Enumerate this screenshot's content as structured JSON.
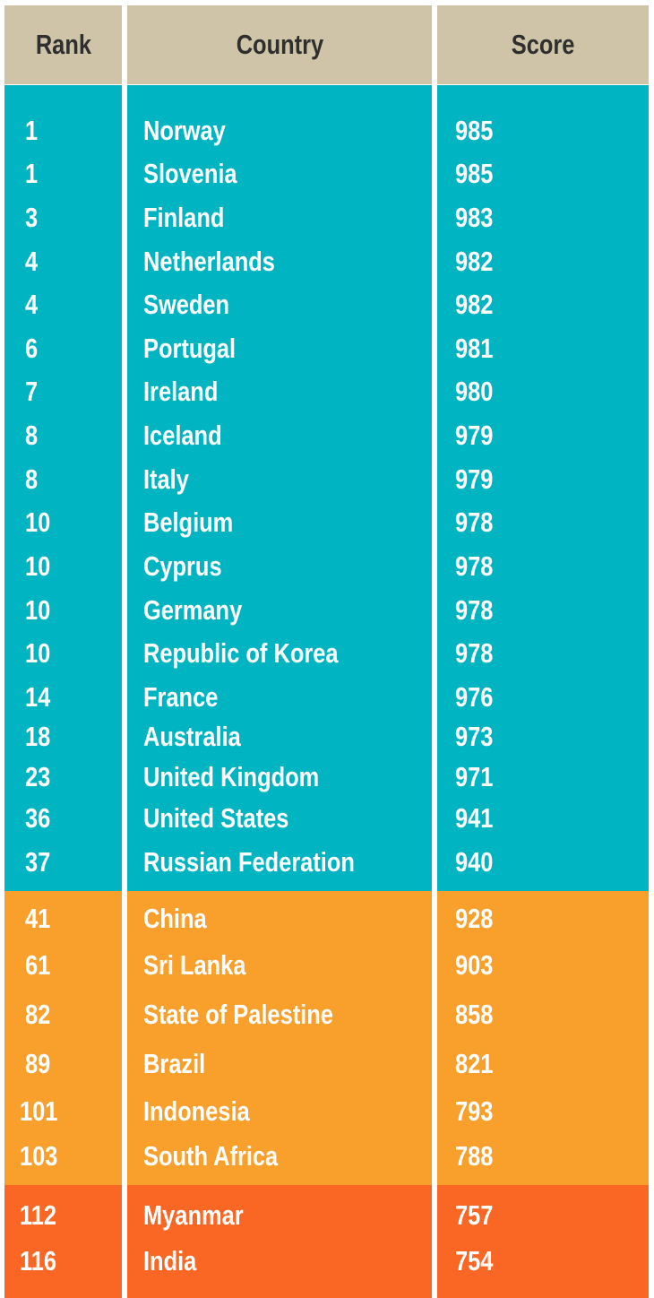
{
  "chart_data": {
    "type": "table",
    "columns": [
      "Rank",
      "Country",
      "Score"
    ],
    "colors": {
      "header": "#cfc4a8",
      "group_1": "#00b5c1",
      "group_2": "#f9a02c",
      "group_3": "#fa6623"
    },
    "rows": [
      {
        "rank": "1",
        "country": "Norway",
        "score": 985,
        "group": 1
      },
      {
        "rank": "1",
        "country": "Slovenia",
        "score": 985,
        "group": 1
      },
      {
        "rank": "3",
        "country": "Finland",
        "score": 983,
        "group": 1
      },
      {
        "rank": "4",
        "country": "Netherlands",
        "score": 982,
        "group": 1
      },
      {
        "rank": "4",
        "country": "Sweden",
        "score": 982,
        "group": 1
      },
      {
        "rank": "6",
        "country": "Portugal",
        "score": 981,
        "group": 1
      },
      {
        "rank": "7",
        "country": "Ireland",
        "score": 980,
        "group": 1
      },
      {
        "rank": "8",
        "country": "Iceland",
        "score": 979,
        "group": 1
      },
      {
        "rank": "8",
        "country": "Italy",
        "score": 979,
        "group": 1
      },
      {
        "rank": "10",
        "country": "Belgium",
        "score": 978,
        "group": 1
      },
      {
        "rank": "10",
        "country": "Cyprus",
        "score": 978,
        "group": 1
      },
      {
        "rank": "10",
        "country": "Germany",
        "score": 978,
        "group": 1
      },
      {
        "rank": "10",
        "country": "Republic of Korea",
        "score": 978,
        "group": 1
      },
      {
        "rank": "14",
        "country": "France",
        "score": 976,
        "group": 1
      },
      {
        "rank": "18",
        "country": "Australia",
        "score": 973,
        "group": 1
      },
      {
        "rank": "23",
        "country": "United Kingdom",
        "score": 971,
        "group": 1
      },
      {
        "rank": "36",
        "country": "United States",
        "score": 941,
        "group": 1
      },
      {
        "rank": "37",
        "country": "Russian Federation",
        "score": 940,
        "group": 1
      },
      {
        "rank": "41",
        "country": "China",
        "score": 928,
        "group": 2
      },
      {
        "rank": "61",
        "country": "Sri Lanka",
        "score": 903,
        "group": 2
      },
      {
        "rank": "82",
        "country": "State of Palestine",
        "score": 858,
        "group": 2
      },
      {
        "rank": "89",
        "country": "Brazil",
        "score": 821,
        "group": 2
      },
      {
        "rank": "101",
        "country": "Indonesia",
        "score": 793,
        "group": 2
      },
      {
        "rank": "103",
        "country": "South Africa",
        "score": 788,
        "group": 2
      },
      {
        "rank": "112",
        "country": "Myanmar",
        "score": 757,
        "group": 3
      },
      {
        "rank": "116",
        "country": "India",
        "score": 754,
        "group": 3
      }
    ]
  }
}
